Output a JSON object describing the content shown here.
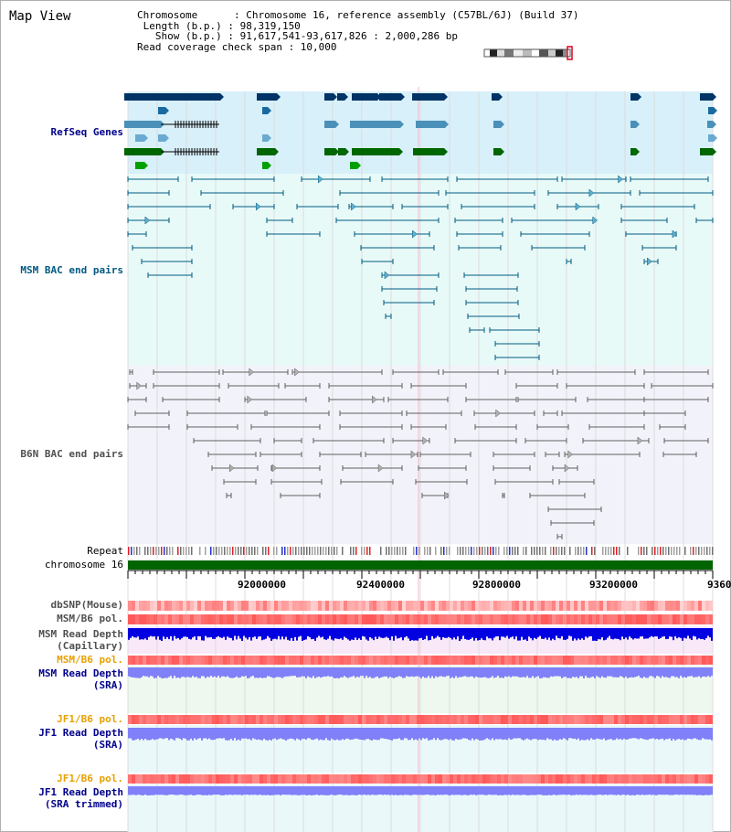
{
  "view": {
    "title": "Map View"
  },
  "info": {
    "chromosome_line": "Chromosome      : Chromosome 16, reference assembly (C57BL/6J) (Build 37)",
    "length_line": " Length (b.p.) : 98,319,150",
    "show_line": "   Show (b.p.) : 91,617,541-93,617,826 : 2,000,286 bp",
    "coverage_line": "Read coverage check span : 10,000"
  },
  "tracks": {
    "refseq": "RefSeq Genes",
    "msm_bac": "MSM BAC end pairs",
    "b6n_bac": "B6N BAC end pairs",
    "repeat": "Repeat",
    "chromosome": "chromosome 16",
    "dbsnp": "dbSNP(Mouse)",
    "msm_b6_pol": "MSM/B6 pol.",
    "msm_depth_cap_1": "MSM Read Depth",
    "msm_depth_cap_2": "(Capillary)",
    "msm_b6_pol_2": "MSM/B6 pol.",
    "msm_depth_sra_1": "MSM Read Depth",
    "msm_depth_sra_2": "(SRA)",
    "jf1_b6_pol": "JF1/B6 pol.",
    "jf1_depth_sra_1": "JF1 Read Depth",
    "jf1_depth_sra_2": "(SRA)",
    "jf1_b6_pol_2": "JF1/B6 pol.",
    "jf1_depth_trim_1": "JF1 Read Depth",
    "jf1_depth_trim_2": "(SRA trimmed)"
  },
  "axis": {
    "ticks": [
      "92000000",
      "92400000",
      "92800000",
      "93200000",
      "9360"
    ]
  },
  "colors": {
    "refseq_bg": "#d8f0fa",
    "msm_bg": "#e8faf8",
    "b6n_bg": "#f2f2fa",
    "label_blue": "#00008b",
    "label_teal": "#005a80",
    "label_gray": "#505050",
    "label_orange": "#e8a000",
    "chromosome_bar": "#006400",
    "depth_blue": "#0000e0",
    "depth_purple": "#8080f8"
  }
}
